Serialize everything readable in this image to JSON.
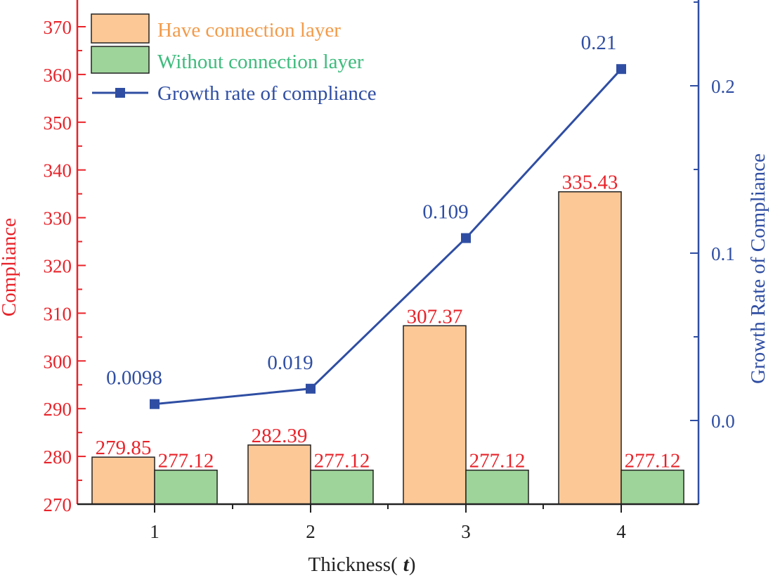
{
  "chart_data": {
    "type": "bar",
    "categories": [
      "1",
      "2",
      "3",
      "4"
    ],
    "series": [
      {
        "name": "Have connection layer",
        "values": [
          279.85,
          282.39,
          307.37,
          335.43
        ],
        "axis": "left",
        "color": "#fbc896",
        "label_color": "#f29b4a"
      },
      {
        "name": "Without connection layer",
        "values": [
          277.12,
          277.12,
          277.12,
          277.12
        ],
        "axis": "left",
        "color": "#9ed49a",
        "label_color": "#3dbb7c"
      },
      {
        "name": "Growth rate of compliance",
        "type": "line",
        "values": [
          0.0098,
          0.019,
          0.109,
          0.21
        ],
        "axis": "right",
        "color": "#2f4ea3"
      }
    ],
    "bar_labels": [
      [
        "279.85",
        "282.39",
        "307.37",
        "335.43"
      ],
      [
        "277.12",
        "277.12",
        "277.12",
        "277.12"
      ]
    ],
    "line_labels": [
      "0.0098",
      "0.019",
      "0.109",
      "0.21"
    ],
    "xlabel_text": "Thickness(",
    "xlabel_var": "t",
    "xlabel_close": ")",
    "ylabel": "Compliance",
    "y2label": "Growth Rate of Compliance",
    "ylim": [
      270,
      375
    ],
    "y2lim": [
      -0.05,
      0.25
    ],
    "yticks": [
      270,
      280,
      290,
      300,
      310,
      320,
      330,
      340,
      350,
      360,
      370
    ],
    "y2ticks": [
      "0.0",
      "0.1",
      "0.2"
    ],
    "y2tick_values": [
      0.0,
      0.1,
      0.2
    ],
    "legend_position": "top-left",
    "axis_colors": {
      "left": "#e8232a",
      "right": "#2f4ea3",
      "bottom": "#222222"
    }
  }
}
